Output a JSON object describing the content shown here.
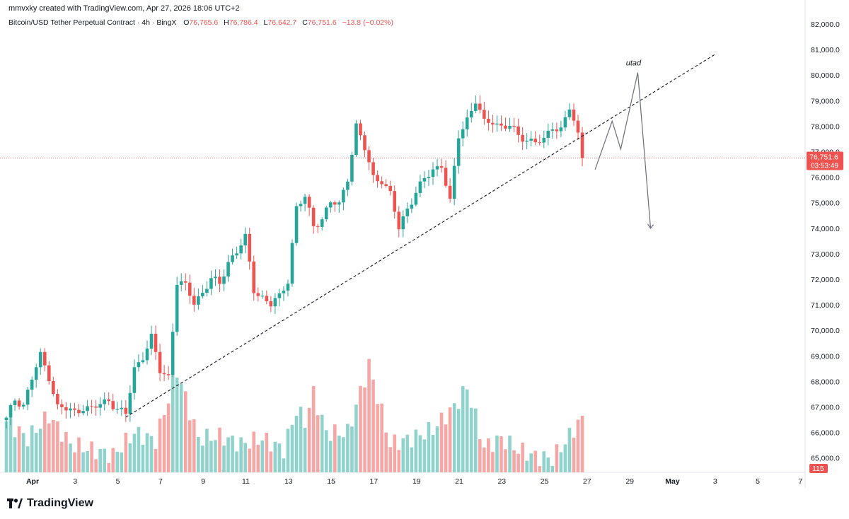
{
  "header": {
    "created_by": "mmvxky created with TradingView.com, Apr 27, 2026 18:06 UTC+2"
  },
  "legend": {
    "symbol": "Bitcoin/USD Tether Perpetual Contract · 4h · BingX",
    "o_label": "O",
    "o_value": "76,765.6",
    "h_label": "H",
    "h_value": "76,786.4",
    "l_label": "L",
    "l_value": "76,642.7",
    "c_label": "C",
    "c_value": "76,751.6",
    "change": "−13.8 (−0.02%)"
  },
  "price_tag": {
    "price": "76,751.6",
    "countdown": "03:53:49"
  },
  "volume_tag": {
    "value": "115"
  },
  "annotation": {
    "label": "utad"
  },
  "footer": {
    "brand": "TradingView"
  },
  "chart_data": {
    "type": "candlestick",
    "timeframe": "4h",
    "y_ticks": [
      "82,000.0",
      "81,000.0",
      "80,000.0",
      "79,000.0",
      "78,000.0",
      "77,000.0",
      "76,000.0",
      "75,000.0",
      "74,000.0",
      "73,000.0",
      "72,000.0",
      "71,000.0",
      "70,000.0",
      "69,000.0",
      "68,000.0",
      "67,000.0",
      "66,000.0",
      "65,000.0"
    ],
    "x_ticks": [
      "Apr",
      "3",
      "5",
      "7",
      "9",
      "11",
      "13",
      "15",
      "17",
      "19",
      "21",
      "23",
      "25",
      "27",
      "29",
      "May",
      "3",
      "5",
      "7"
    ],
    "ylim": [
      64500,
      82300
    ],
    "colors": {
      "up": "#26a69a",
      "down": "#ef5350",
      "vol_up": "#8fd3cc",
      "vol_down": "#f6a7a5"
    },
    "ohlc_anchors": [
      [
        0,
        66500
      ],
      [
        2,
        67300
      ],
      [
        4,
        67100
      ],
      [
        6,
        68100
      ],
      [
        8,
        69000
      ],
      [
        10,
        68200
      ],
      [
        12,
        67000
      ],
      [
        14,
        66900
      ],
      [
        16,
        66800
      ],
      [
        18,
        67000
      ],
      [
        20,
        66900
      ],
      [
        22,
        67100
      ],
      [
        24,
        67300
      ],
      [
        26,
        66900
      ],
      [
        28,
        66700
      ],
      [
        30,
        68500
      ],
      [
        32,
        69000
      ],
      [
        34,
        69700
      ],
      [
        36,
        68400
      ],
      [
        38,
        68200
      ],
      [
        40,
        71900
      ],
      [
        42,
        71700
      ],
      [
        44,
        71100
      ],
      [
        46,
        71500
      ],
      [
        48,
        72000
      ],
      [
        50,
        71800
      ],
      [
        52,
        72700
      ],
      [
        54,
        73100
      ],
      [
        56,
        73600
      ],
      [
        58,
        71600
      ],
      [
        60,
        71300
      ],
      [
        62,
        71000
      ],
      [
        64,
        71300
      ],
      [
        66,
        72000
      ],
      [
        68,
        74800
      ],
      [
        70,
        75200
      ],
      [
        72,
        74100
      ],
      [
        74,
        74400
      ],
      [
        76,
        75000
      ],
      [
        78,
        74900
      ],
      [
        80,
        76000
      ],
      [
        82,
        78000
      ],
      [
        84,
        77100
      ],
      [
        86,
        76000
      ],
      [
        88,
        75900
      ],
      [
        90,
        75300
      ],
      [
        92,
        74000
      ],
      [
        94,
        74800
      ],
      [
        96,
        75400
      ],
      [
        98,
        75900
      ],
      [
        100,
        76300
      ],
      [
        102,
        76500
      ],
      [
        104,
        75000
      ],
      [
        106,
        77600
      ],
      [
        108,
        78300
      ],
      [
        110,
        79000
      ],
      [
        112,
        78100
      ],
      [
        114,
        78200
      ],
      [
        116,
        78000
      ],
      [
        118,
        78000
      ],
      [
        120,
        77600
      ],
      [
        122,
        77500
      ],
      [
        124,
        77400
      ],
      [
        126,
        77400
      ],
      [
        128,
        78000
      ],
      [
        130,
        77900
      ],
      [
        132,
        78700
      ],
      [
        134,
        77600
      ],
      [
        135,
        76751
      ]
    ],
    "volume_anchors": [
      [
        0,
        0.45
      ],
      [
        5,
        0.3
      ],
      [
        10,
        0.5
      ],
      [
        15,
        0.25
      ],
      [
        20,
        0.2
      ],
      [
        25,
        0.15
      ],
      [
        30,
        0.35
      ],
      [
        35,
        0.28
      ],
      [
        40,
        0.9
      ],
      [
        45,
        0.3
      ],
      [
        50,
        0.32
      ],
      [
        55,
        0.25
      ],
      [
        60,
        0.3
      ],
      [
        65,
        0.2
      ],
      [
        68,
        0.55
      ],
      [
        70,
        0.45
      ],
      [
        72,
        0.7
      ],
      [
        75,
        0.35
      ],
      [
        80,
        0.35
      ],
      [
        85,
        0.95
      ],
      [
        90,
        0.25
      ],
      [
        95,
        0.3
      ],
      [
        100,
        0.38
      ],
      [
        105,
        0.58
      ],
      [
        108,
        0.75
      ],
      [
        112,
        0.22
      ],
      [
        116,
        0.3
      ],
      [
        120,
        0.2
      ],
      [
        124,
        0.14
      ],
      [
        128,
        0.12
      ],
      [
        132,
        0.32
      ],
      [
        135,
        0.5
      ]
    ],
    "trendline": {
      "start": {
        "bar": 28,
        "price": 66600
      },
      "end": {
        "bar": 166,
        "price": 80800
      }
    },
    "projection_path": [
      [
        138,
        76300
      ],
      [
        142,
        78200
      ],
      [
        144,
        77100
      ],
      [
        148,
        80100
      ],
      [
        151,
        74000
      ]
    ]
  }
}
